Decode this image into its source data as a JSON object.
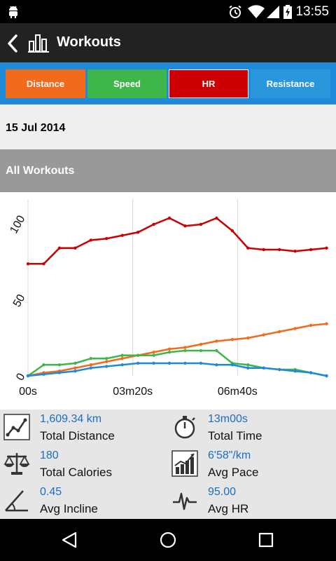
{
  "status_bar": {
    "time": "13:55",
    "icons": [
      "android-icon",
      "alarm-icon",
      "wifi-icon",
      "signal-icon",
      "battery-icon"
    ]
  },
  "action_bar": {
    "title": "Workouts",
    "icons": [
      "back-icon",
      "bar-chart-icon"
    ]
  },
  "tabs": [
    {
      "label": "Distance",
      "color": "#f26a1b"
    },
    {
      "label": "Speed",
      "color": "#3fb64a"
    },
    {
      "label": "HR",
      "color": "#cc0000",
      "selected": true
    },
    {
      "label": "Resistance",
      "color": "#2a97dc"
    }
  ],
  "date": "15 Jul 2014",
  "section_title": "All Workouts",
  "chart_data": {
    "type": "line",
    "title": "",
    "xlabel": "",
    "ylabel": "",
    "x_unit": "seconds",
    "x_ticks": [
      {
        "value": 0,
        "label": "00s"
      },
      {
        "value": 200,
        "label": "03m20s"
      },
      {
        "value": 400,
        "label": "06m40s"
      }
    ],
    "y_ticks": [
      {
        "value": 0,
        "label": "0"
      },
      {
        "value": 50,
        "label": "50"
      },
      {
        "value": 100,
        "label": "100"
      }
    ],
    "xlim": [
      0,
      580
    ],
    "ylim": [
      0,
      112
    ],
    "grid": "vertical-x-ticks",
    "x": [
      0,
      30,
      60,
      90,
      120,
      150,
      180,
      210,
      240,
      270,
      300,
      330,
      360,
      390,
      420,
      450,
      480,
      510,
      540,
      570
    ],
    "series": [
      {
        "color": "#cc0000",
        "values": [
          71,
          71,
          81,
          81,
          86,
          87,
          89,
          91,
          96,
          100,
          95,
          96,
          100,
          92,
          81,
          80,
          80,
          79,
          80,
          81
        ]
      },
      {
        "color": "#f26a1b",
        "values": [
          0,
          2,
          3,
          5,
          7,
          9,
          11,
          13,
          15,
          17,
          18,
          20,
          22,
          23,
          24,
          26,
          28,
          30,
          32,
          33
        ]
      },
      {
        "color": "#3fb64a",
        "values": [
          0,
          7,
          7,
          8,
          11,
          11,
          13,
          13,
          13,
          15,
          16,
          16,
          16,
          8,
          7,
          5,
          4,
          4,
          2,
          0
        ]
      },
      {
        "color": "#1f8bd8",
        "values": [
          0,
          1,
          2,
          3,
          5,
          6,
          7,
          8,
          8,
          8,
          8,
          8,
          7,
          7,
          5,
          5,
          4,
          3,
          2,
          0
        ]
      }
    ]
  },
  "stats": [
    {
      "value": "1,609.34 km",
      "label": "Total Distance",
      "icon": "distance-graph-icon"
    },
    {
      "value": "13m00s",
      "label": "Total Time",
      "icon": "stopwatch-icon"
    },
    {
      "value": "180",
      "label": "Total Calories",
      "icon": "scale-icon"
    },
    {
      "value": "6'58\"/km",
      "label": "Avg Pace",
      "icon": "pace-chart-icon"
    },
    {
      "value": "0.45",
      "label": "Avg Incline",
      "icon": "incline-icon"
    },
    {
      "value": "95.00",
      "label": "Avg HR",
      "icon": "heartbeat-icon"
    }
  ],
  "nav_bar": {
    "icons": [
      "nav-back-icon",
      "nav-home-icon",
      "nav-recents-icon"
    ]
  }
}
